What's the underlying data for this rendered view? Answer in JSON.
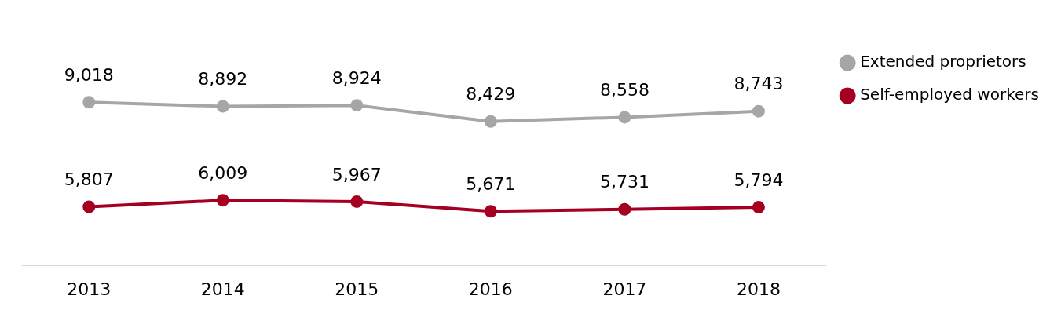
{
  "chart_data": {
    "type": "line",
    "categories": [
      "2013",
      "2014",
      "2015",
      "2016",
      "2017",
      "2018"
    ],
    "series": [
      {
        "name": "Extended proprietors",
        "color": "#a6a6a6",
        "values": [
          9018,
          8892,
          8924,
          8429,
          8558,
          8743
        ],
        "value_labels": [
          "9,018",
          "8,892",
          "8,924",
          "8,429",
          "8,558",
          "8,743"
        ]
      },
      {
        "name": "Self-employed workers",
        "color": "#a50021",
        "values": [
          5807,
          6009,
          5967,
          5671,
          5731,
          5794
        ],
        "value_labels": [
          "5,807",
          "6,009",
          "5,967",
          "5,671",
          "5,731",
          "5,794"
        ]
      }
    ],
    "legend": "right",
    "marker": "circle",
    "line_style": "solid",
    "grid": false
  }
}
